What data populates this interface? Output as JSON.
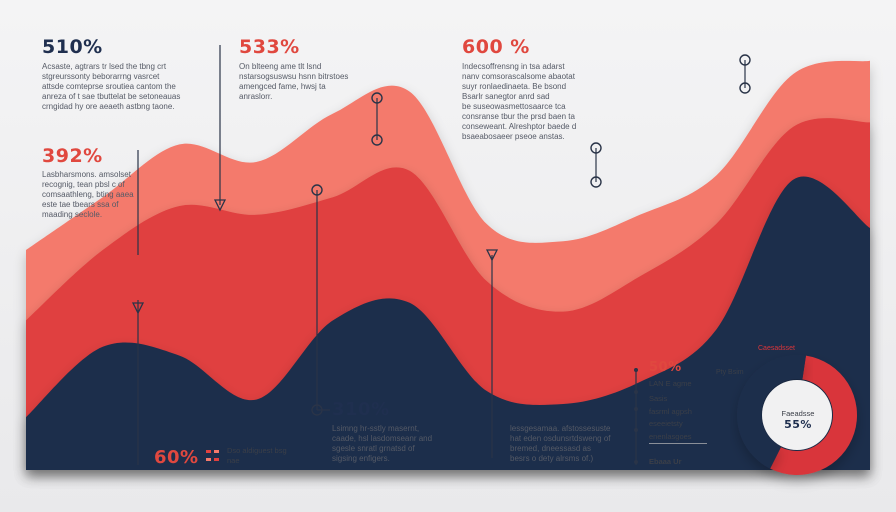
{
  "chart_data": {
    "type": "area",
    "series": [
      {
        "color": "#f47a6c",
        "values": [
          0.5,
          0.62,
          0.74,
          0.7,
          0.81,
          0.86,
          0.56,
          0.52,
          0.58,
          0.67,
          0.9,
          0.93
        ]
      },
      {
        "color": "#e0413f",
        "values": [
          0.34,
          0.5,
          0.6,
          0.58,
          0.62,
          0.68,
          0.43,
          0.36,
          0.44,
          0.56,
          0.78,
          0.79
        ]
      },
      {
        "color": "#1f2e4c",
        "values": [
          0.12,
          0.28,
          0.26,
          0.16,
          0.34,
          0.38,
          0.18,
          0.15,
          0.2,
          0.32,
          0.66,
          0.55
        ]
      }
    ],
    "donut": {
      "values": [
        55,
        45
      ],
      "colors": [
        "#d9353a",
        "#1f2e4c"
      ],
      "label": "Faeadsse",
      "center_value": "55%",
      "outer_label": "Caesadsset",
      "left_label": "Pty Bsim"
    }
  },
  "annotations": {
    "a1": {
      "value": "510%",
      "text": "Acsaste, agtrars tr lsed the tbng crt\nstgreurssonty beborarrng vasrcet\nattsde comteprse sroutiea cantom the\nanreza of t sae tbuttelat be setoneauas\ncrngidad hy ore aeaeth astbng taone."
    },
    "a2": {
      "value": "533%",
      "text": "On blteeng ame tlt lsnd\nnstarsogsuswsu hsnn bitrstoes\namengced fame, hwsj ta\nanraslorr."
    },
    "a3": {
      "value": "600 %",
      "text": "Indecsoffrensng in tsa adarst\nnanv comsorascalsome abaotat\nsuyr ronlaedinaeta. Be bsond\nBsarlr sanegtor anrd sad\nbe suseowasmettosaarce tca\nconsranse tbur the prsd baen ta\nconseweant. Alreshptor baede d\nbsaeabosaeer pseoe anstas."
    },
    "a4": {
      "value": "392%",
      "text": "Lasbharsmons. amsolset\nrecognig, tean pbsl c of\ncomsaathleng, bting aaea\neste tae tbears ssa of\nmaading seclole."
    },
    "a5": {
      "value": "310%",
      "text": "Lsimng hr-sstly masernt,\ncaade, hsl lasdomseanr and\nsgesle snratl grnatsd of\nsigsing enfigers."
    },
    "a6": {
      "value": "60%",
      "items": [
        "Dso aldiguest bsg",
        "nae"
      ]
    },
    "a7": {
      "text": "lessgesamaa. afstossesuste\nhat eden osdunsrtdsweng of\nbremed, dneessasd as\nbesrs o dety alrsms of.)"
    },
    "a8": {
      "value": "50%",
      "items": [
        "LAN E agme",
        "Sasis",
        "fasrml agpsh",
        "eseeietsty",
        "enenlasgoes",
        "Ebaaa Ur"
      ]
    }
  }
}
